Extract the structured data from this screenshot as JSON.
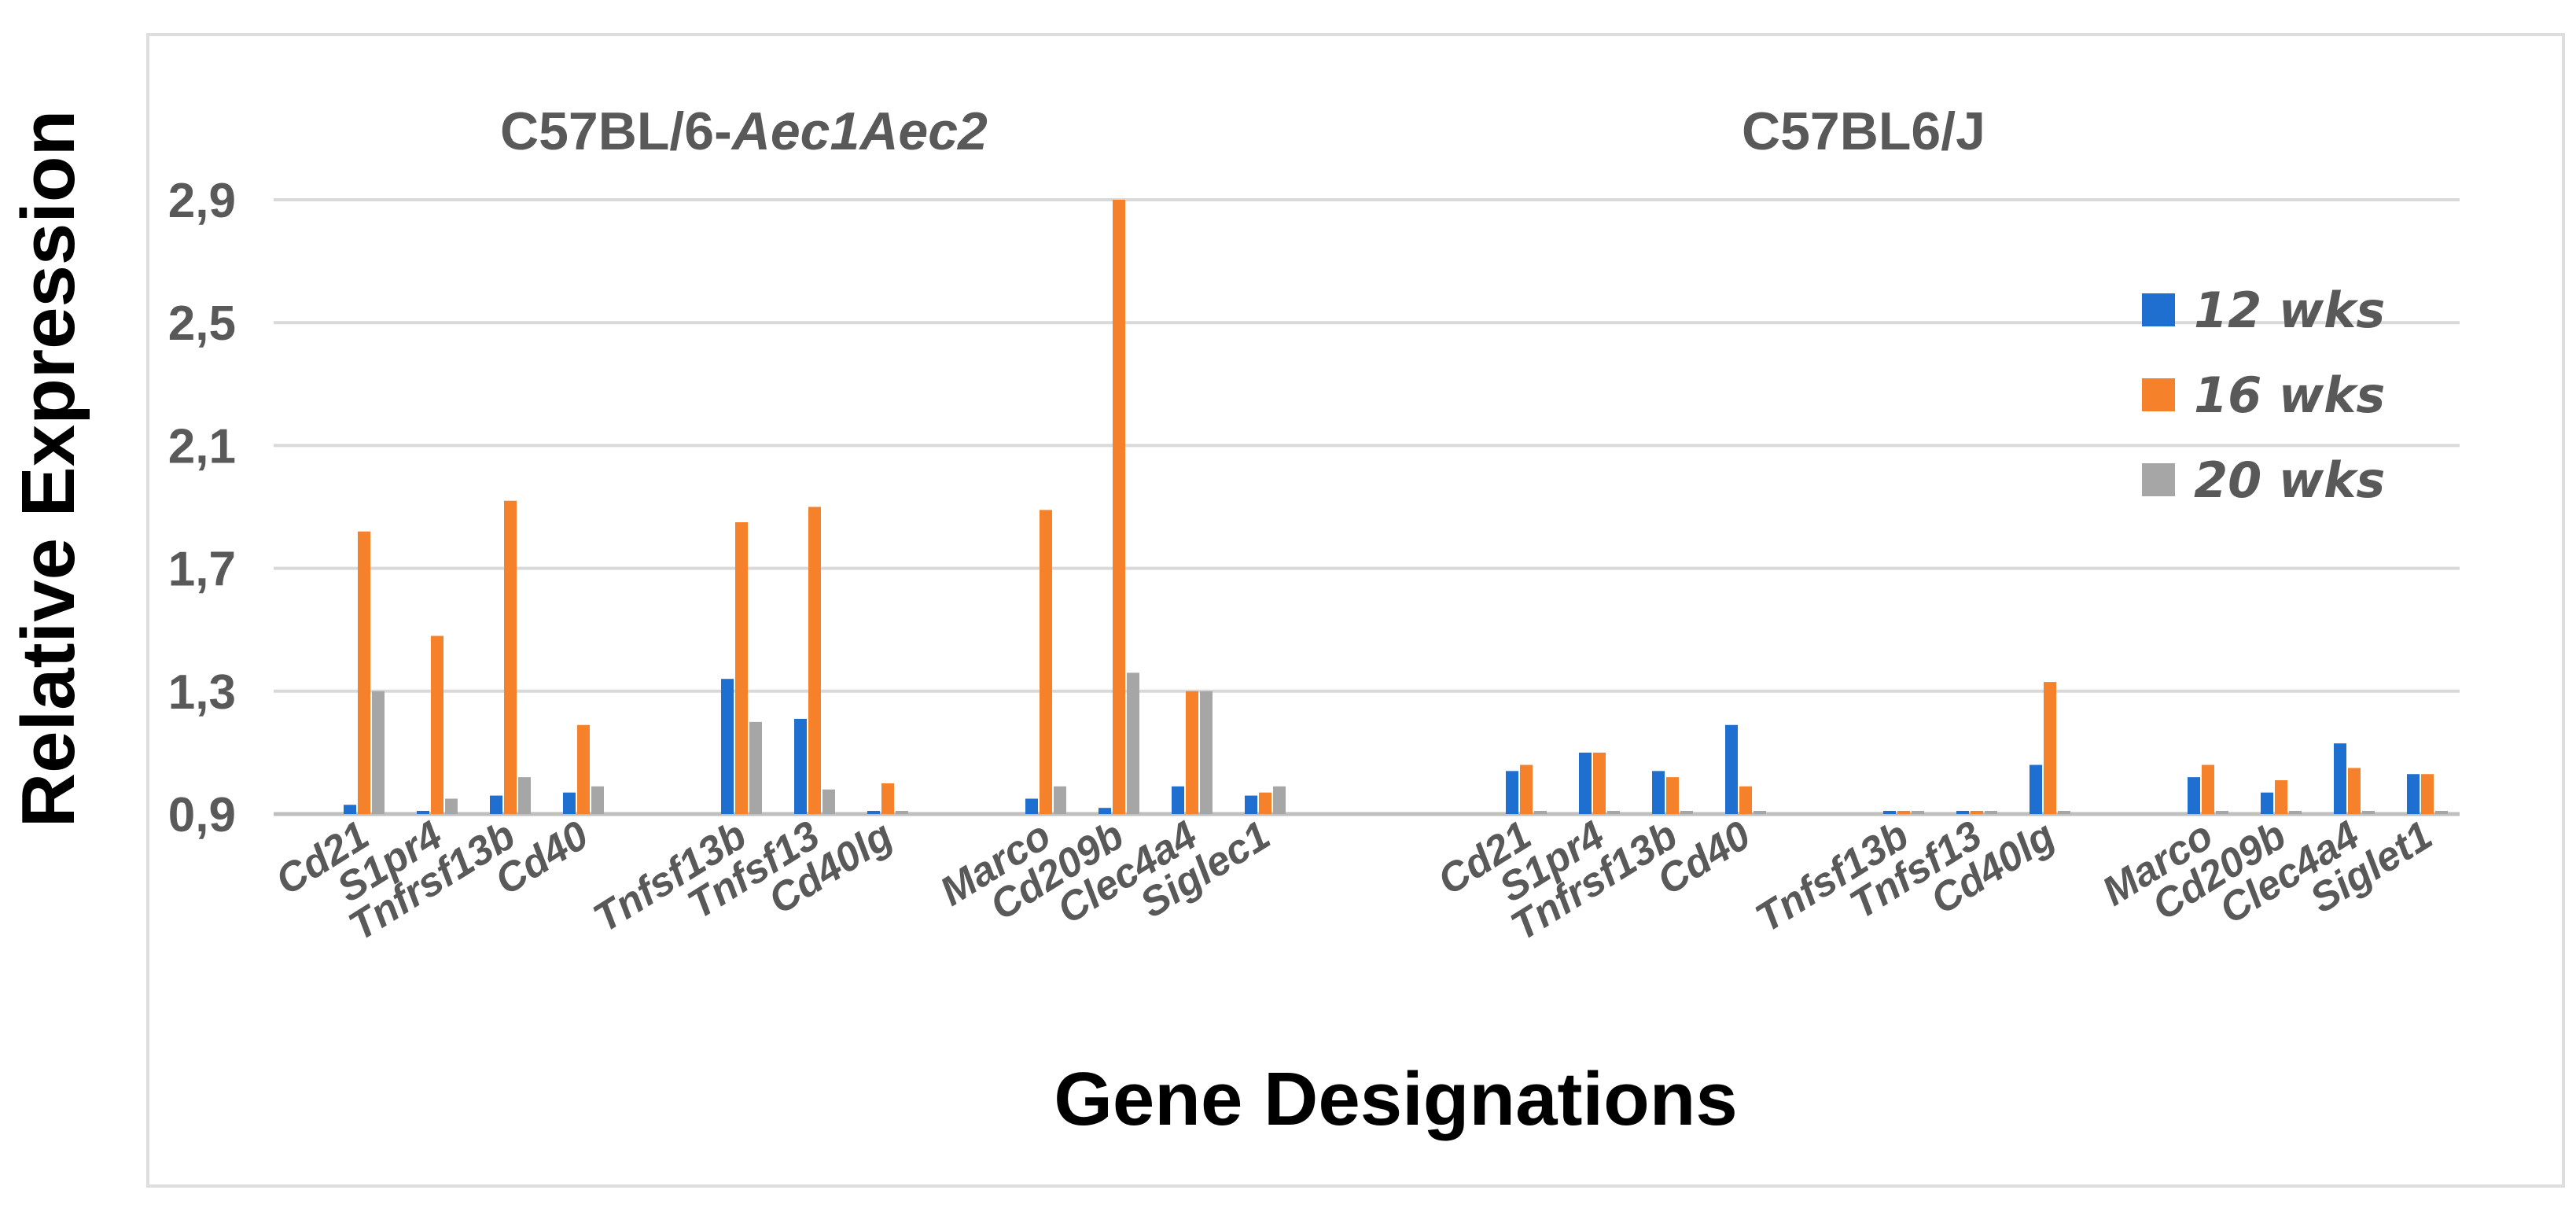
{
  "chart_data": {
    "type": "bar",
    "title_left": "C57BL/6-",
    "title_left_italic": "Aec1Aec2",
    "title_right": "C57BL6/J",
    "xlabel": "Gene Designations",
    "ylabel": "Relative Expression",
    "ylim": [
      0.9,
      2.9
    ],
    "yticks": [
      "0,9",
      "1,3",
      "1,7",
      "2,1",
      "2,5",
      "2,9"
    ],
    "ytick_values": [
      0.9,
      1.3,
      1.7,
      2.1,
      2.5,
      2.9
    ],
    "series": [
      {
        "name": "12 wks",
        "color": "#1f6fd1"
      },
      {
        "name": "16 wks",
        "color": "#f5822a"
      },
      {
        "name": "20 wks",
        "color": "#a6a6a6"
      }
    ],
    "panels": [
      {
        "name": "C57BL/6-Aec1Aec2",
        "groups": [
          {
            "categories": [
              "Cd21",
              "S1pr4",
              "Tnfrsf13b",
              "Cd40"
            ],
            "values": [
              [
                0.93,
                1.82,
                1.3
              ],
              [
                0.9,
                1.48,
                0.95
              ],
              [
                0.96,
                1.92,
                1.02
              ],
              [
                0.97,
                1.19,
                0.99
              ]
            ]
          },
          {
            "categories": [
              "Tnfsf13b",
              "Tnfsf13",
              "Cd40lg"
            ],
            "values": [
              [
                1.34,
                1.85,
                1.2
              ],
              [
                1.21,
                1.9,
                0.98
              ],
              [
                0.9,
                1.0,
                0.9
              ]
            ]
          },
          {
            "categories": [
              "Marco",
              "Cd209b",
              "Clec4a4",
              "Siglec1"
            ],
            "values": [
              [
                0.95,
                1.89,
                0.99
              ],
              [
                0.92,
                2.9,
                1.36
              ],
              [
                0.99,
                1.3,
                1.3
              ],
              [
                0.96,
                0.97,
                0.99
              ]
            ]
          }
        ]
      },
      {
        "name": "C57BL6/J",
        "groups": [
          {
            "categories": [
              "Cd21",
              "S1pr4",
              "Tnfrsf13b",
              "Cd40"
            ],
            "values": [
              [
                1.04,
                1.06,
                0.9
              ],
              [
                1.1,
                1.1,
                0.9
              ],
              [
                1.04,
                1.02,
                0.9
              ],
              [
                1.19,
                0.99,
                0.9
              ]
            ]
          },
          {
            "categories": [
              "Tnfsf13b",
              "Tnfsf13",
              "Cd40lg"
            ],
            "values": [
              [
                0.9,
                0.9,
                0.9
              ],
              [
                0.9,
                0.9,
                0.9
              ],
              [
                1.06,
                1.33,
                0.9
              ]
            ]
          },
          {
            "categories": [
              "Marco",
              "Cd209b",
              "Clec4a4",
              "Siglet1"
            ],
            "values": [
              [
                1.02,
                1.06,
                0.9
              ],
              [
                0.97,
                1.01,
                0.9
              ],
              [
                1.13,
                1.05,
                0.9
              ],
              [
                1.03,
                1.03,
                0.9
              ]
            ]
          }
        ]
      }
    ]
  }
}
